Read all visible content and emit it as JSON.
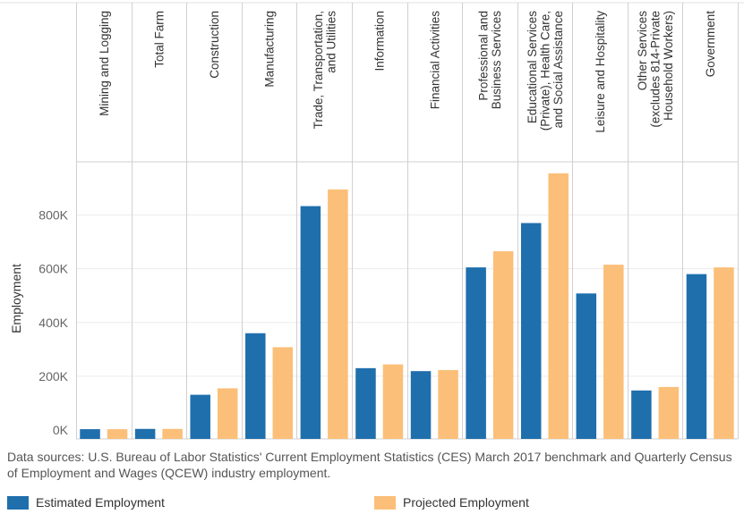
{
  "chart_data": {
    "type": "bar",
    "categories": [
      "Mining and Logging",
      "Total Farm",
      "Construction",
      "Manufacturing",
      "Trade, Transportation, and Utilities",
      "Information",
      "Financial Activities",
      "Professional and Business Services",
      "Educational Services (Private), Health Care, and Social Assistance",
      "Leisure and Hospitality",
      "Other Services (excludes 814-Private Household Workers)",
      "Government"
    ],
    "category_label_lines": [
      [
        "Mining and Logging"
      ],
      [
        "Total Farm"
      ],
      [
        "Construction"
      ],
      [
        "Manufacturing"
      ],
      [
        "Trade, Transportation,",
        "and Utilities"
      ],
      [
        "Information"
      ],
      [
        "Financial Activities"
      ],
      [
        "Professional and",
        "Business Services"
      ],
      [
        "Educational Services",
        "(Private), Health Care,",
        "and Social Assistance"
      ],
      [
        "Leisure and Hospitality"
      ],
      [
        "Other Services",
        "(excludes 814-Private",
        "Household Workers)"
      ],
      [
        "Government"
      ]
    ],
    "series": [
      {
        "name": "Estimated Employment",
        "color": "#1f6fad",
        "values": [
          3000,
          4000,
          131000,
          360000,
          833000,
          230000,
          219000,
          605000,
          770000,
          508000,
          147000,
          580000
        ]
      },
      {
        "name": "Projected Employment",
        "color": "#fbbf79",
        "values": [
          3000,
          4000,
          155000,
          308000,
          895000,
          244000,
          223000,
          665000,
          955000,
          615000,
          160000,
          605000
        ]
      }
    ],
    "ylabel": "Employment",
    "xlabel": "",
    "ylim": [
      -30000,
      1000000
    ],
    "yticks": [
      0,
      200000,
      400000,
      600000,
      800000
    ],
    "ytick_labels": [
      "0K",
      "200K",
      "400K",
      "600K",
      "800K"
    ],
    "grid": true,
    "legend_position": "bottom"
  },
  "source_note": "Data sources: U.S. Bureau of Labor Statistics' Current Employment Statistics (CES) March 2017 benchmark and Quarterly Census of Employment and Wages (QCEW) industry employment.",
  "legend": [
    {
      "label": "Estimated Employment",
      "color": "#1f6fad"
    },
    {
      "label": "Projected Employment",
      "color": "#fbbf79"
    }
  ]
}
